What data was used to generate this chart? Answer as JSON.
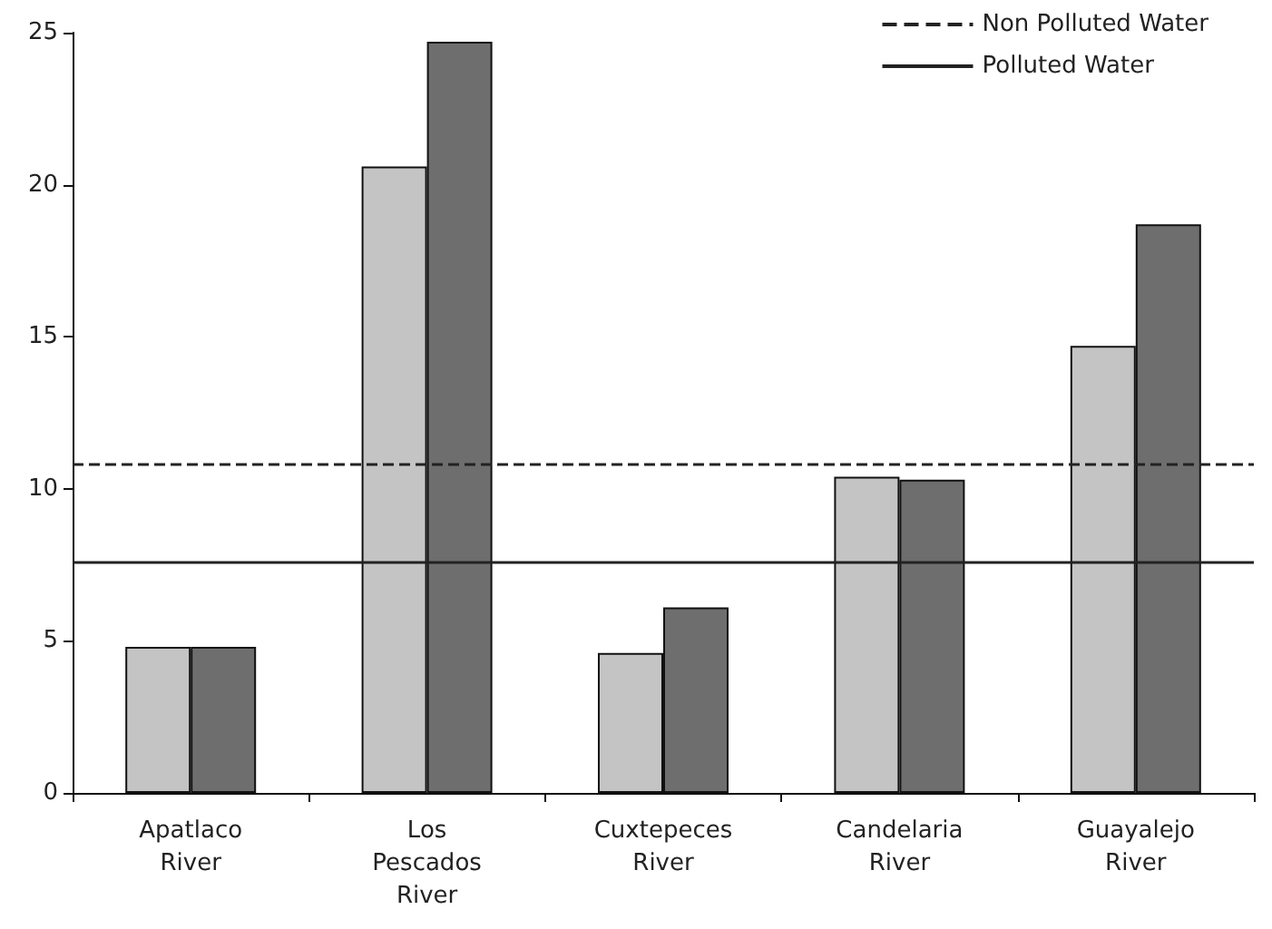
{
  "chart_data": {
    "type": "bar",
    "categories": [
      "Apatlaco\nRiver",
      "Los\nPescados\nRiver",
      "Cuxtepeces\nRiver",
      "Candelaria\nRiver",
      "Guayalejo\nRiver"
    ],
    "series": [
      {
        "color": "#c4c4c4",
        "values": [
          4.8,
          20.6,
          4.6,
          10.4,
          14.7
        ]
      },
      {
        "color": "#6e6e6e",
        "values": [
          4.8,
          24.7,
          6.1,
          10.3,
          18.7
        ]
      }
    ],
    "ylim": [
      0,
      25
    ],
    "yticks": [
      0,
      5,
      10,
      15,
      20,
      25
    ],
    "ref_lines": [
      {
        "axis": "y",
        "value": 10.8,
        "label": "Non Polluted Water",
        "color": "#222222",
        "line_style": "dashed"
      },
      {
        "axis": "y",
        "value": 7.6,
        "label": "Polluted Water",
        "color": "#222222",
        "line_style": "solid"
      }
    ],
    "legend": "top right",
    "grid": false
  }
}
